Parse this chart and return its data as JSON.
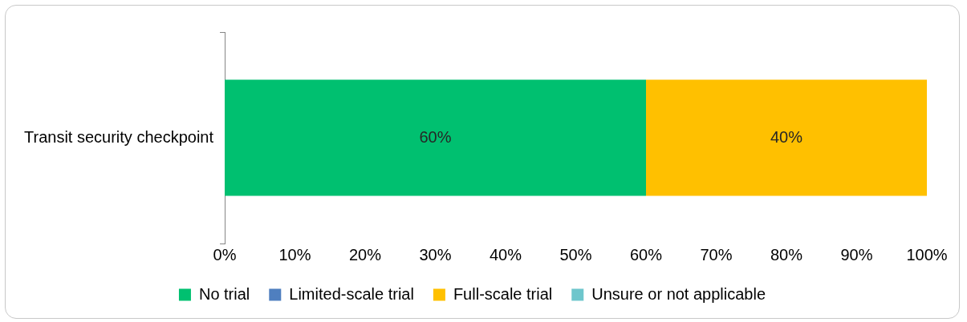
{
  "chart_data": {
    "type": "bar",
    "orientation": "horizontal",
    "stacked": true,
    "categories": [
      "Transit security checkpoint"
    ],
    "series": [
      {
        "name": "No trial",
        "color": "#00c070",
        "values": [
          60
        ],
        "value_labels": [
          "60%"
        ]
      },
      {
        "name": "Limited-scale trial",
        "color": "#4f7fbf",
        "values": [
          0
        ],
        "value_labels": [
          null
        ]
      },
      {
        "name": "Full-scale trial",
        "color": "#ffc000",
        "values": [
          40
        ],
        "value_labels": [
          "40%"
        ]
      },
      {
        "name": "Unsure or not applicable",
        "color": "#6ec6cc",
        "values": [
          0
        ],
        "value_labels": [
          null
        ]
      }
    ],
    "xlim": [
      0,
      100
    ],
    "xticks": [
      {
        "value": 0,
        "label": "0%"
      },
      {
        "value": 10,
        "label": "10%"
      },
      {
        "value": 20,
        "label": "20%"
      },
      {
        "value": 30,
        "label": "30%"
      },
      {
        "value": 40,
        "label": "40%"
      },
      {
        "value": 50,
        "label": "50%"
      },
      {
        "value": 60,
        "label": "60%"
      },
      {
        "value": 70,
        "label": "70%"
      },
      {
        "value": 80,
        "label": "80%"
      },
      {
        "value": 90,
        "label": "90%"
      },
      {
        "value": 100,
        "label": "100%"
      }
    ],
    "grid": false,
    "legend": "bottom"
  }
}
